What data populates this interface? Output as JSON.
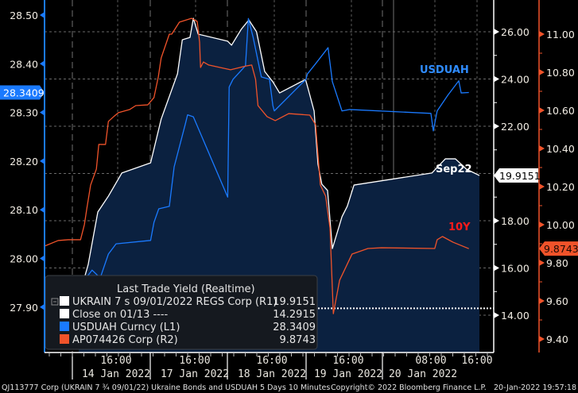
{
  "chart_data": {
    "type": "line",
    "legend": {
      "title": "Last Trade Yield (Realtime)",
      "placement": "bottom-left",
      "entries": [
        {
          "label": "UKRAIN 7 s 09/01/2022 REGS Corp  (R1)",
          "value": "19.9151",
          "color": "#ffffff"
        },
        {
          "label": "Close on 01/13 ----",
          "value": "14.2915",
          "color": "#ffffff"
        },
        {
          "label": "USDUAH Curncy  (L1)",
          "value": "28.3409",
          "color": "#1a7aff"
        },
        {
          "label": "AP074426 Corp  (R2)",
          "value": "9.8743",
          "color": "#f0532a"
        }
      ]
    },
    "axes": {
      "left": {
        "ylim": [
          27.9,
          28.5
        ],
        "ticks": [
          "28.50",
          "28.40",
          "28.30",
          "28.20",
          "28.10",
          "28.00",
          "27.90"
        ],
        "last_value": "28.3409",
        "color": "#1a7aff"
      },
      "right1": {
        "ylim": [
          14,
          26
        ],
        "ticks": [
          "26.00",
          "24.00",
          "22.00",
          "18.00",
          "16.00",
          "14.00"
        ],
        "last_value": "19.9151",
        "color": "#ffffff"
      },
      "right2": {
        "ylim": [
          9.4,
          11.0
        ],
        "ticks": [
          "11.00",
          "10.80",
          "10.60",
          "10.40",
          "10.20",
          "10.00",
          "9.80",
          "9.60",
          "9.40"
        ],
        "last_value": "9.8743",
        "color": "#f0532a"
      }
    },
    "x_axis": {
      "ticks": [
        {
          "time": "16:00",
          "date": "14 Jan 2022"
        },
        {
          "time": "16:00",
          "date": "17 Jan 2022"
        },
        {
          "time": "16:00",
          "date": "18 Jan 2022"
        },
        {
          "time": "16:00",
          "date": "19 Jan 2022"
        },
        {
          "time": "08:00",
          "date": "20 Jan 2022"
        },
        {
          "time": "16:00",
          "date": ""
        }
      ]
    },
    "grid": true,
    "close_line": {
      "axis": "right1",
      "value": 14.2915
    },
    "annotations": [
      {
        "text": "USDUAH",
        "color": "#2f8cff"
      },
      {
        "text": "Sep22",
        "color": "#ffffff"
      },
      {
        "text": "10Y",
        "color": "#ff1a1a"
      }
    ],
    "series": [
      {
        "key": "sep22",
        "axis": "right1",
        "color": "#ffffff",
        "filled": true,
        "points": [
          [
            "14 Jan 09:30",
            14.34
          ],
          [
            "14 Jan 10:30",
            15.58
          ],
          [
            "14 Jan 11:10",
            16.15
          ],
          [
            "14 Jan 12:50",
            18.37
          ],
          [
            "14 Jan 14:40",
            19.04
          ],
          [
            "14 Jan 17:00",
            20.02
          ],
          [
            "17 Jan 08:20",
            20.45
          ],
          [
            "17 Jan 10:10",
            22.3
          ],
          [
            "17 Jan 13:00",
            24.22
          ],
          [
            "17 Jan 13:50",
            25.66
          ],
          [
            "17 Jan 15:10",
            25.76
          ],
          [
            "17 Jan 15:45",
            26.57
          ],
          [
            "17 Jan 16:35",
            25.9
          ],
          [
            "18 Jan 08:20",
            25.6
          ],
          [
            "18 Jan 09:00",
            25.43
          ],
          [
            "18 Jan 10:40",
            26.1
          ],
          [
            "18 Jan 12:00",
            26.5
          ],
          [
            "18 Jan 13:20",
            26.0
          ],
          [
            "18 Jan 14:45",
            24.32
          ],
          [
            "18 Jan 16:10",
            23.88
          ],
          [
            "18 Jan 17:20",
            23.41
          ],
          [
            "18 Jan 21:50",
            23.98
          ],
          [
            "19 Jan 09:05",
            23.55
          ],
          [
            "19 Jan 10:05",
            22.64
          ],
          [
            "19 Jan 10:45",
            20.39
          ],
          [
            "19 Jan 11:25",
            19.55
          ],
          [
            "19 Jan 12:25",
            19.28
          ],
          [
            "19 Jan 13:15",
            16.82
          ],
          [
            "19 Jan 14:55",
            18.17
          ],
          [
            "19 Jan 15:50",
            18.61
          ],
          [
            "19 Jan 17:00",
            19.51
          ],
          [
            "20 Jan 08:10",
            20.02
          ],
          [
            "20 Jan 10:30",
            20.62
          ],
          [
            "20 Jan 12:15",
            20.62
          ],
          [
            "20 Jan 14:10",
            20.18
          ],
          [
            "20 Jan 16:25",
            19.9151
          ]
        ]
      },
      {
        "key": "usduah",
        "axis": "left",
        "color": "#1a7aff",
        "filled": false,
        "points": [
          [
            "13 Jan 17:00",
            27.9
          ],
          [
            "14 Jan 08:40",
            27.927
          ],
          [
            "14 Jan 11:50",
            27.976
          ],
          [
            "14 Jan 13:15",
            27.96
          ],
          [
            "14 Jan 14:40",
            28.009
          ],
          [
            "14 Jan 16:00",
            28.03
          ],
          [
            "17 Jan 08:20",
            28.037
          ],
          [
            "17 Jan 08:55",
            28.074
          ],
          [
            "17 Jan 09:45",
            28.102
          ],
          [
            "17 Jan 11:35",
            28.107
          ],
          [
            "17 Jan 12:25",
            28.188
          ],
          [
            "17 Jan 14:20",
            28.275
          ],
          [
            "17 Jan 14:45",
            28.295
          ],
          [
            "17 Jan 15:45",
            28.291
          ],
          [
            "18 Jan 08:20",
            28.126
          ],
          [
            "18 Jan 08:35",
            28.352
          ],
          [
            "18 Jan 09:15",
            28.368
          ],
          [
            "18 Jan 11:25",
            28.396
          ],
          [
            "18 Jan 11:55",
            28.493
          ],
          [
            "18 Jan 12:45",
            28.454
          ],
          [
            "18 Jan 14:10",
            28.373
          ],
          [
            "18 Jan 15:35",
            28.368
          ],
          [
            "18 Jan 16:10",
            28.314
          ],
          [
            "18 Jan 16:25",
            28.303
          ],
          [
            "19 Jan 08:40",
            28.368
          ],
          [
            "19 Jan 08:55",
            28.379
          ],
          [
            "19 Jan 10:20",
            28.4
          ],
          [
            "19 Jan 12:30",
            28.433
          ],
          [
            "19 Jan 13:15",
            28.363
          ],
          [
            "19 Jan 14:55",
            28.303
          ],
          [
            "19 Jan 16:15",
            28.306
          ],
          [
            "20 Jan 08:00",
            28.298
          ],
          [
            "20 Jan 08:25",
            28.262
          ],
          [
            "20 Jan 09:05",
            28.303
          ],
          [
            "20 Jan 10:55",
            28.335
          ],
          [
            "20 Jan 12:50",
            28.365
          ],
          [
            "20 Jan 13:15",
            28.34
          ],
          [
            "20 Jan 14:35",
            28.3409
          ]
        ]
      },
      {
        "key": "10y",
        "axis": "right2",
        "color": "#f0532a",
        "filled": false,
        "points": [
          [
            "13 Jan 17:00",
            9.888
          ],
          [
            "13 Jan 19:20",
            9.917
          ],
          [
            "13 Jan 21:05",
            9.921
          ],
          [
            "14 Jan 09:50",
            9.921
          ],
          [
            "14 Jan 10:30",
            10.0
          ],
          [
            "14 Jan 10:55",
            10.083
          ],
          [
            "14 Jan 11:35",
            10.208
          ],
          [
            "14 Jan 12:35",
            10.292
          ],
          [
            "14 Jan 13:00",
            10.421
          ],
          [
            "14 Jan 14:10",
            10.421
          ],
          [
            "14 Jan 14:40",
            10.542
          ],
          [
            "14 Jan 15:35",
            10.567
          ],
          [
            "14 Jan 16:25",
            10.588
          ],
          [
            "14 Jan 18:20",
            10.604
          ],
          [
            "14 Jan 19:25",
            10.625
          ],
          [
            "14 Jan 21:30",
            10.629
          ],
          [
            "17 Jan 08:55",
            10.667
          ],
          [
            "17 Jan 09:40",
            10.775
          ],
          [
            "17 Jan 10:10",
            10.875
          ],
          [
            "17 Jan 11:35",
            11.0
          ],
          [
            "17 Jan 12:00",
            11.0
          ],
          [
            "17 Jan 13:20",
            11.063
          ],
          [
            "17 Jan 15:25",
            11.083
          ],
          [
            "17 Jan 16:25",
            11.067
          ],
          [
            "17 Jan 16:50",
            10.958
          ],
          [
            "17 Jan 17:00",
            10.825
          ],
          [
            "17 Jan 17:30",
            10.854
          ],
          [
            "17 Jan 18:25",
            10.838
          ],
          [
            "18 Jan 08:50",
            10.813
          ],
          [
            "18 Jan 11:30",
            10.833
          ],
          [
            "18 Jan 12:30",
            10.838
          ],
          [
            "18 Jan 13:10",
            10.763
          ],
          [
            "18 Jan 13:35",
            10.625
          ],
          [
            "18 Jan 15:10",
            10.567
          ],
          [
            "18 Jan 16:35",
            10.546
          ],
          [
            "18 Jan 18:55",
            10.583
          ],
          [
            "19 Jan 09:20",
            10.575
          ],
          [
            "19 Jan 10:20",
            10.525
          ],
          [
            "19 Jan 11:10",
            10.208
          ],
          [
            "19 Jan 12:05",
            10.15
          ],
          [
            "19 Jan 12:50",
            9.983
          ],
          [
            "19 Jan 13:25",
            9.533
          ],
          [
            "19 Jan 14:30",
            9.708
          ],
          [
            "19 Jan 16:40",
            9.846
          ],
          [
            "19 Jan 19:25",
            9.875
          ],
          [
            "19 Jan 21:45",
            9.879
          ],
          [
            "20 Jan 08:40",
            9.875
          ],
          [
            "20 Jan 09:05",
            9.921
          ],
          [
            "20 Jan 10:00",
            9.938
          ],
          [
            "20 Jan 11:50",
            9.908
          ],
          [
            "20 Jan 14:35",
            9.8743
          ]
        ]
      }
    ]
  },
  "footer": {
    "left": "QJ113777 Corp (UKRAIN 7 ¾ 09/01/22) Ukraine Bonds and USDUAH 5 Days 10 Minutes",
    "center": "Copyright© 2022 Bloomberg Finance L.P.",
    "right": "20-Jan-2022 19:57:18"
  }
}
